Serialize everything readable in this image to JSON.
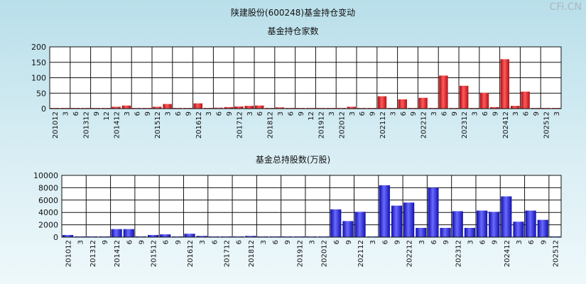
{
  "title": "陕建股份(600248)基金持仓变动",
  "watermark": "CFi.CN",
  "colors": {
    "red": "#e8262a",
    "blue": "#2828e6"
  },
  "chart_data": [
    {
      "type": "bar",
      "title": "基金持仓家数",
      "ylim": [
        0,
        200
      ],
      "yticks": [
        0,
        50,
        100,
        150,
        200
      ],
      "grid": true,
      "color": "#e8262a",
      "categories": [
        "201012",
        "3",
        "6",
        "201312",
        "9",
        "12",
        "201412",
        "3",
        "6",
        "9",
        "201512",
        "3",
        "6",
        "9",
        "201612",
        "3",
        "6",
        "9",
        "201712",
        "3",
        "6",
        "201812",
        "3",
        "6",
        "9",
        "12",
        "201912",
        "3",
        "202012",
        "3",
        "6",
        "9",
        "202112",
        "3",
        "6",
        "9",
        "202212",
        "3",
        "6",
        "9",
        "202312",
        "3",
        "6",
        "9",
        "202412",
        "3",
        "6",
        "9",
        "202512",
        "3"
      ],
      "values": [
        1,
        1,
        1,
        1,
        1,
        1,
        6,
        10,
        1,
        1,
        6,
        15,
        1,
        1,
        17,
        1,
        3,
        5,
        7,
        9,
        10,
        1,
        4,
        1,
        1,
        1,
        1,
        1,
        1,
        6,
        1,
        1,
        40,
        1,
        30,
        1,
        35,
        1,
        107,
        1,
        74,
        1,
        51,
        5,
        160,
        9,
        55,
        1,
        1,
        1
      ]
    },
    {
      "type": "bar",
      "title": "基金总持股数(万股)",
      "ylim": [
        0,
        10000
      ],
      "yticks": [
        0,
        2000,
        4000,
        6000,
        8000,
        10000
      ],
      "grid": true,
      "color": "#2828e6",
      "categories": [
        "201012",
        "3",
        "201312",
        "9",
        "201412",
        "6",
        "9",
        "201512",
        "6",
        "9",
        "201612",
        "3",
        "6",
        "201712",
        "6",
        "201812",
        "3",
        "6",
        "9",
        "201912",
        "3",
        "202012",
        "6",
        "9",
        "202112",
        "3",
        "6",
        "9",
        "202212",
        "3",
        "6",
        "9",
        "202312",
        "3",
        "6",
        "9",
        "202412",
        "3",
        "6",
        "9",
        "202512"
      ],
      "values": [
        350,
        80,
        80,
        80,
        1300,
        1300,
        100,
        350,
        450,
        100,
        550,
        200,
        100,
        100,
        100,
        200,
        100,
        100,
        100,
        100,
        100,
        100,
        4500,
        2600,
        4100,
        100,
        8400,
        5100,
        5600,
        1500,
        8000,
        1500,
        4200,
        1500,
        4300,
        4100,
        6600,
        2500,
        4300,
        2800,
        100
      ]
    }
  ]
}
